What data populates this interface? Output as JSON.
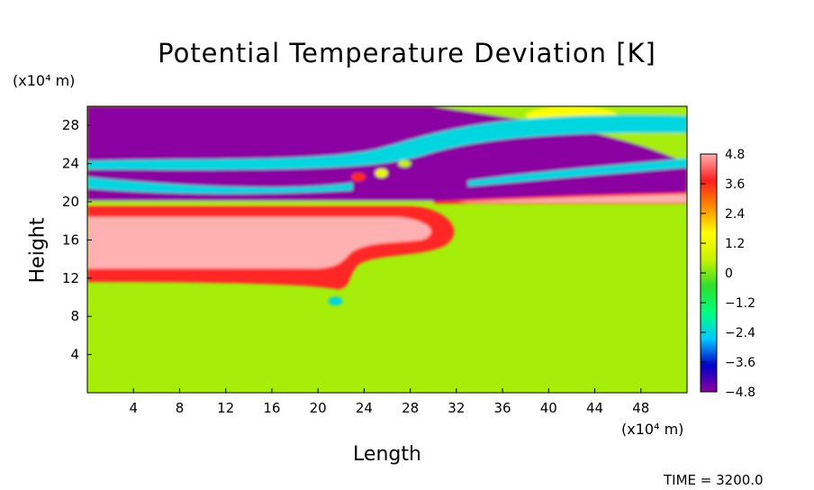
{
  "chart_data": {
    "type": "heatmap",
    "title": "Potential Temperature Deviation [K]",
    "xlabel": "Length",
    "ylabel": "Height",
    "x_unit": "(x10⁴ m)",
    "y_unit": "(x10⁴ m)",
    "xlim": [
      0,
      52
    ],
    "ylim": [
      0,
      30
    ],
    "x_ticks": [
      4,
      8,
      12,
      16,
      20,
      24,
      28,
      32,
      36,
      40,
      44,
      48
    ],
    "y_ticks": [
      4,
      8,
      12,
      16,
      20,
      24,
      28
    ],
    "colorbar": {
      "range": [
        -4.8,
        4.8
      ],
      "tick_values": [
        4.8,
        3.6,
        2.4,
        1.2,
        0,
        -1.2,
        -2.4,
        -3.6,
        -4.8
      ],
      "tick_labels": [
        "4.8",
        "3.6",
        "2.4",
        "1.2",
        "0",
        "−1.2",
        "−2.4",
        "−3.6",
        "−4.8"
      ],
      "color_stops": [
        "#8b00a0",
        "#0000c8",
        "#00c8ff",
        "#00ff7f",
        "#2fe02f",
        "#c8f000",
        "#ffff00",
        "#ff8c00",
        "#ff1e1e",
        "#ffb0b0"
      ]
    },
    "regions": [
      {
        "feature": "background",
        "value": 0.3,
        "x": [
          0,
          52
        ],
        "y": [
          0,
          30
        ]
      },
      {
        "feature": "warm core",
        "value": 4.8,
        "x": [
          0,
          30
        ],
        "y": [
          13,
          19
        ]
      },
      {
        "feature": "warm outer band",
        "value": 3.8,
        "x": [
          0,
          32
        ],
        "y": [
          11.6,
          19.8
        ]
      },
      {
        "feature": "cold layer",
        "value": -4.8,
        "x": [
          0,
          52
        ],
        "y": [
          20,
          30
        ]
      },
      {
        "feature": "cold wave crest",
        "value": -2.4,
        "x": [
          0,
          52
        ],
        "y": [
          21,
          24.5
        ]
      },
      {
        "feature": "warm tongue",
        "value": 4.8,
        "x": [
          30,
          52
        ],
        "y": [
          19.8,
          21
        ]
      },
      {
        "feature": "upper warm patch",
        "value": 1.5,
        "x": [
          42,
          52
        ],
        "y": [
          28,
          30
        ]
      }
    ]
  },
  "time_label": "TIME = 3200.0"
}
